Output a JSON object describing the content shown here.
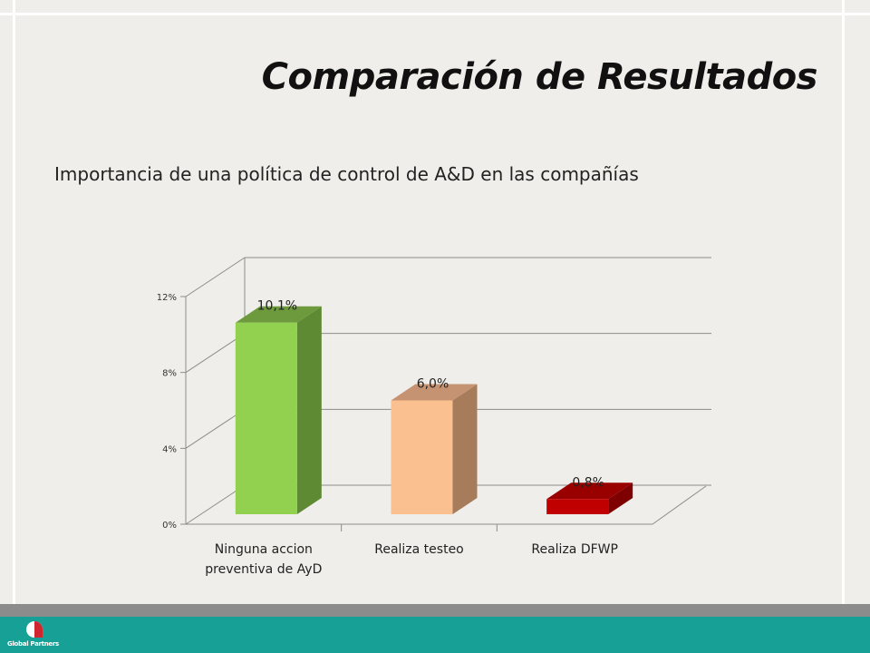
{
  "slide": {
    "title": "Comparación de Resultados",
    "subtitle": "Importancia de una política de control de A&D en las compañías"
  },
  "chart_data": {
    "type": "bar",
    "categories": [
      [
        "Ninguna accion",
        "preventiva de AyD"
      ],
      [
        "Realiza testeo"
      ],
      [
        "Realiza  DFWP"
      ]
    ],
    "values": [
      10.1,
      6.0,
      0.8
    ],
    "data_labels": [
      "10,1%",
      "6,0%",
      "0,8%"
    ],
    "y_ticks": [
      0,
      4,
      8,
      12
    ],
    "y_tick_labels": [
      "0%",
      "4%",
      "8%",
      "12%"
    ],
    "ylim": [
      0,
      12
    ],
    "grid": true,
    "style": "3d-column",
    "colors": {
      "bar_front": [
        "#92d050",
        "#fac090",
        "#c00000"
      ],
      "bar_side": [
        "#5f8a34",
        "#a67c5b",
        "#7e0000"
      ],
      "bar_top": [
        "#6c9a3d",
        "#c69372",
        "#990000"
      ]
    }
  },
  "footer": {
    "logo_text": "Global Partners"
  }
}
